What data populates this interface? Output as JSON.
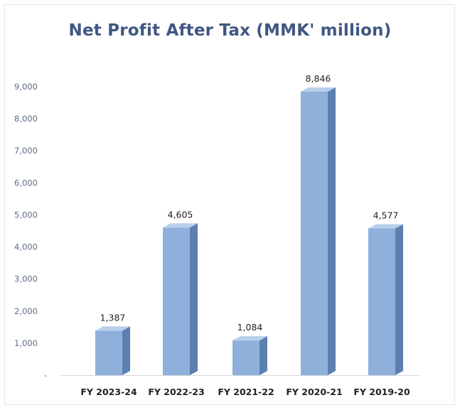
{
  "chart_data": {
    "type": "bar",
    "title": "Net Profit After Tax (MMK' million)",
    "categories": [
      "FY 2023-24",
      "FY 2022-23",
      "FY 2021-22",
      "FY 2020-21",
      "FY 2019-20"
    ],
    "values": [
      1387,
      4605,
      1084,
      8846,
      4577
    ],
    "data_labels": [
      "1,387",
      "4,605",
      "1,084",
      "8,846",
      "4,577"
    ],
    "y_ticks": [
      "-",
      "1,000",
      "2,000",
      "3,000",
      "4,000",
      "5,000",
      "6,000",
      "7,000",
      "8,000",
      "9,000"
    ],
    "ylim": [
      0,
      9000
    ],
    "xlabel": "",
    "ylabel": "",
    "grid": false,
    "legend": "none",
    "bar_style": "3d",
    "colors": {
      "bar_front": "#8eb0db",
      "bar_side": "#5c7fb0",
      "bar_top": "#b9cfeb",
      "title": "#3f5782"
    }
  }
}
